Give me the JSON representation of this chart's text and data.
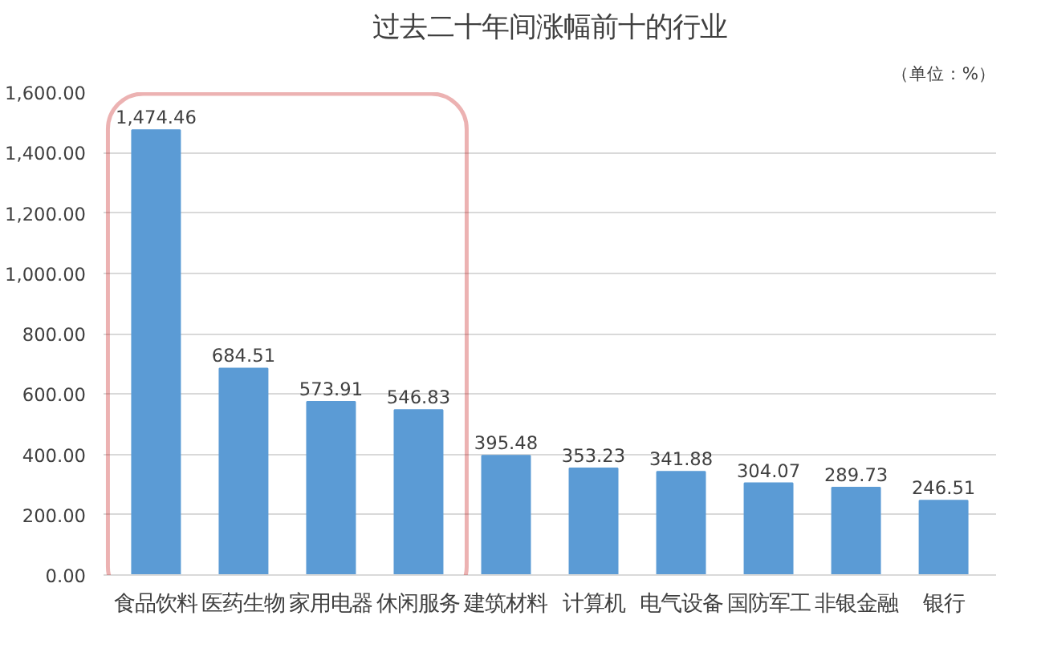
{
  "chart_data": {
    "type": "bar",
    "title": "过去二十年间涨幅前十的行业",
    "subtitle": "（单位：%）",
    "categories": [
      "食品饮料",
      "医药生物",
      "家用电器",
      "休闲服务",
      "建筑材料",
      "计算机",
      "电气设备",
      "国防军工",
      "非银金融",
      "银行"
    ],
    "values": [
      1474.46,
      684.51,
      573.91,
      546.83,
      395.48,
      353.23,
      341.88,
      304.07,
      289.73,
      246.51
    ],
    "value_labels": [
      "1,474.46",
      "684.51",
      "573.91",
      "546.83",
      "395.48",
      "353.23",
      "341.88",
      "304.07",
      "289.73",
      "246.51"
    ],
    "color": "#5b9bd5",
    "ylim": [
      0,
      1600
    ],
    "yticks": [
      {
        "value": 0,
        "label": "0.00"
      },
      {
        "value": 200,
        "label": "200.00"
      },
      {
        "value": 400,
        "label": "400.00"
      },
      {
        "value": 600,
        "label": "600.00"
      },
      {
        "value": 800,
        "label": "800.00"
      },
      {
        "value": 1000,
        "label": "1,000.00"
      },
      {
        "value": 1200,
        "label": "1,200.00"
      },
      {
        "value": 1400,
        "label": "1,400.00"
      },
      {
        "value": 1600,
        "label": "1,600.00"
      }
    ],
    "grid": "y"
  }
}
